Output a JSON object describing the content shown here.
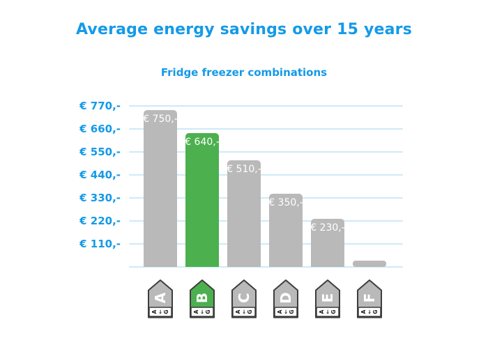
{
  "colors": {
    "accent_blue": "#149ae8",
    "bar_grey": "#b9b9b9",
    "bar_green": "#4cb04f",
    "gridline_blue": "#cfe9f8",
    "badge_border": "#3d3d3d",
    "badge_footer_bg": "#ffffff",
    "value_label_white": "#ffffff"
  },
  "chart_data": {
    "type": "bar",
    "title": "Average energy savings over 15 years",
    "subtitle": "Fridge freezer combinations",
    "categories": [
      "A",
      "B",
      "C",
      "D",
      "E",
      "F"
    ],
    "values": [
      750,
      640,
      510,
      350,
      230,
      30
    ],
    "value_labels": [
      "€ 750,-",
      "€ 640,-",
      "€ 510,-",
      "€ 350,-",
      "€ 230,-",
      ""
    ],
    "highlighted_category": "B",
    "xlabel": "",
    "ylabel": "",
    "ylim": [
      0,
      770
    ],
    "yticks": [
      110,
      220,
      330,
      440,
      550,
      660,
      770
    ],
    "ytick_labels": [
      "€ 110,-",
      "€ 220,-",
      "€ 330,-",
      "€ 440,-",
      "€ 550,-",
      "€ 660,-",
      "€ 770,-"
    ],
    "grid": "horizontal",
    "legend": "none",
    "badge_scale_text": "A←G"
  }
}
